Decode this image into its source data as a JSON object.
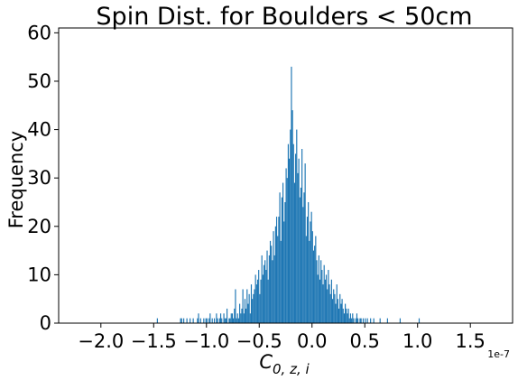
{
  "chart_data": {
    "type": "bar",
    "title": "Spin Dist. for Boulders < 50cm",
    "xlabel": "C",
    "xlabel_sub": "0, z, i",
    "ylabel": "Frequency",
    "x_offset_text": "1e-7",
    "xlim": [
      -2.4,
      1.9
    ],
    "ylim": [
      0,
      61
    ],
    "x_ticks": [
      -2.0,
      -1.5,
      -1.0,
      -0.5,
      0.0,
      0.5,
      1.0,
      1.5
    ],
    "x_tick_labels": [
      "−2.0",
      "−1.5",
      "−1.0",
      "−0.5",
      "0.0",
      "0.5",
      "1.0",
      "1.5"
    ],
    "y_ticks": [
      0,
      10,
      20,
      30,
      40,
      50,
      60
    ],
    "y_tick_labels": [
      "0",
      "10",
      "20",
      "30",
      "40",
      "50",
      "60"
    ],
    "grid": false,
    "bar_color": "#1f77b4",
    "bin_width": 0.01,
    "series": [
      {
        "x_start": -2.1,
        "values": [
          0,
          0,
          0,
          0,
          0,
          0,
          0,
          0,
          0,
          0,
          0,
          0,
          0,
          0,
          0,
          0,
          0,
          0,
          0,
          0,
          0,
          0,
          0,
          0,
          0,
          0,
          0,
          0,
          0,
          0,
          0,
          0,
          0,
          0,
          0,
          0,
          0,
          0,
          0,
          0,
          0,
          0,
          0,
          0,
          0,
          0,
          0,
          0,
          0,
          0,
          0,
          0,
          0,
          0,
          0,
          0,
          0,
          0,
          0,
          0,
          0,
          0,
          0,
          1,
          0,
          0,
          0,
          0,
          0,
          0,
          0,
          0,
          0,
          0,
          0,
          0,
          0,
          0,
          0,
          0,
          0,
          0,
          0,
          0,
          0,
          1,
          1,
          0,
          1,
          0,
          0,
          1,
          0,
          0,
          1,
          0,
          0,
          1,
          0,
          0,
          0,
          1,
          2,
          0,
          1,
          0,
          0,
          1,
          0,
          1,
          1,
          0,
          1,
          2,
          0,
          1,
          0,
          1,
          0,
          2,
          1,
          0,
          1,
          2,
          1,
          0,
          2,
          1,
          1,
          3,
          0,
          1,
          1,
          2,
          2,
          1,
          3,
          7,
          1,
          2,
          1,
          4,
          2,
          3,
          7,
          2,
          5,
          3,
          7,
          4,
          6,
          2,
          8,
          5,
          6,
          7,
          10,
          8,
          9,
          11,
          6,
          9,
          14,
          10,
          12,
          13,
          11,
          15,
          9,
          14,
          17,
          16,
          13,
          19,
          14,
          20,
          22,
          18,
          22,
          27,
          17,
          26,
          29,
          21,
          25,
          32,
          30,
          37,
          34,
          40,
          53,
          44,
          37,
          29,
          35,
          40,
          31,
          34,
          26,
          28,
          36,
          24,
          27,
          33,
          18,
          22,
          25,
          17,
          21,
          23,
          19,
          15,
          16,
          18,
          13,
          10,
          14,
          9,
          13,
          11,
          8,
          12,
          9,
          10,
          7,
          11,
          8,
          6,
          9,
          5,
          7,
          6,
          4,
          8,
          5,
          3,
          6,
          4,
          5,
          3,
          2,
          4,
          3,
          2,
          3,
          1,
          2,
          1,
          2,
          1,
          0,
          1,
          2,
          1,
          0,
          1,
          1,
          0,
          1,
          0,
          1,
          0,
          1,
          0,
          0,
          1,
          0,
          0,
          1,
          0,
          0,
          0,
          0,
          0,
          1,
          0,
          0,
          0,
          0,
          0,
          0,
          1,
          0,
          0,
          0,
          0,
          0,
          0,
          0,
          0,
          0,
          0,
          0,
          1,
          0,
          0,
          0,
          0,
          0,
          0,
          0,
          0,
          0,
          0,
          0,
          0,
          0,
          0,
          0,
          0,
          0,
          1
        ]
      }
    ]
  }
}
